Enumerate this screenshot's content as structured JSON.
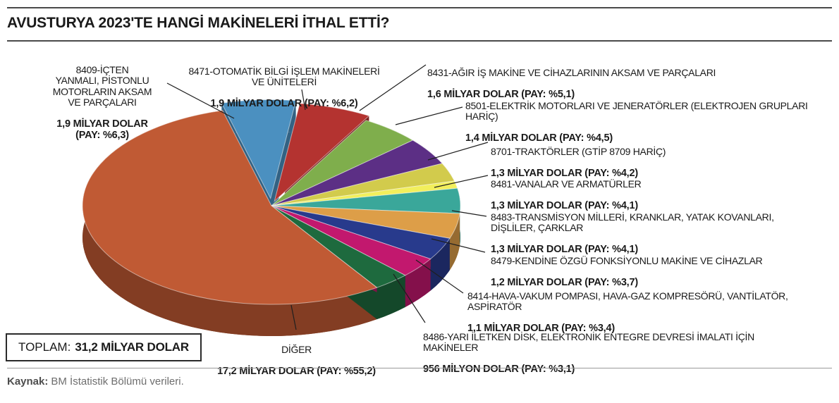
{
  "header": {
    "title": "AVUSTURYA 2023'TE HANGİ MAKİNELERİ İTHAL ETTİ?"
  },
  "total": {
    "label": "TOPLAM:",
    "value": "31,2 MİLYAR DOLAR"
  },
  "footer": {
    "source_label": "Kaynak:",
    "source_text": "BM İstatistik Bölümü verileri."
  },
  "chart_data": {
    "type": "pie",
    "title": "AVUSTURYA 2023'TE HANGİ MAKİNELERİ İTHAL ETTİ?",
    "total_value_billion_usd": 31.2,
    "total_label": "TOPLAM: 31,2 MİLYAR DOLAR",
    "source": "Kaynak: BM İstatistik Bölümü verileri.",
    "legend_position": "callouts-around-pie",
    "start_angle_deg": -15,
    "slices": [
      {
        "id": "8409",
        "label": "8409-İÇTEN YANMALI, PİSTONLU MOTORLARIN AKSAM VE PARÇALARI",
        "value_billion_usd": 1.9,
        "share_pct": 6.3,
        "color": "#4b90c0",
        "explode": 20,
        "callout": {
          "name": "8409-İÇTEN\nYANMALI, PİSTONLU\nMOTORLARIN AKSAM\nVE PARÇALARI",
          "value": "1,9 MİLYAR DOLAR\n(PAY: %6,3)"
        }
      },
      {
        "id": "8471",
        "label": "8471-OTOMATİK BİLGİ İŞLEM MAKİNELERİ VE ÜNİTELERİ",
        "value_billion_usd": 1.9,
        "share_pct": 6.2,
        "color": "#b43330",
        "explode": 13,
        "callout": {
          "name": "8471-OTOMATİK BİLGİ İŞLEM MAKİNELERİ\nVE ÜNİTELERİ",
          "value": "1,9 MİLYAR DOLAR (PAY: %6,2)"
        }
      },
      {
        "id": "8431",
        "label": "8431-AĞIR İŞ MAKİNE VE CİHAZLARININ AKSAM VE PARÇALARI",
        "value_billion_usd": 1.6,
        "share_pct": 5.1,
        "color": "#7fae4c",
        "explode": 0,
        "callout": {
          "name": "8431-AĞIR İŞ MAKİNE VE CİHAZLARININ AKSAM VE PARÇALARI",
          "value": "1,6 MİLYAR DOLAR (PAY: %5,1)"
        }
      },
      {
        "id": "8501",
        "label": "8501-ELEKTRİK MOTORLARI VE JENERATÖRLER (ELEKTROJEN GRUPLARI HARİÇ)",
        "value_billion_usd": 1.4,
        "share_pct": 4.5,
        "color": "#5c2f85",
        "explode": 0,
        "callout": {
          "name": "8501-ELEKTRİK MOTORLARI VE JENERATÖRLER (ELEKTROJEN GRUPLARI\nHARİÇ)",
          "value": "1,4 MİLYAR DOLAR (PAY: %4,5)"
        }
      },
      {
        "id": "8701",
        "label": "8701-TRAKTÖRLER (GTİP 8709 HARİÇ)",
        "value_billion_usd": 1.3,
        "share_pct": 4.2,
        "color": "#d2cb4c",
        "explode": 0,
        "split": {
          "at": 0.72,
          "edge_color": "#f2ef5c"
        },
        "callout": {
          "name": "8701-TRAKTÖRLER (GTİP 8709 HARİÇ)",
          "value": "1,3 MİLYAR DOLAR (PAY: %4,2)"
        }
      },
      {
        "id": "8481",
        "label": "8481-VANALAR VE ARMATÜRLER",
        "value_billion_usd": 1.3,
        "share_pct": 4.1,
        "color": "#3aa79a",
        "explode": 0,
        "callout": {
          "name": "8481-VANALAR VE ARMATÜRLER",
          "value": "1,3 MİLYAR DOLAR (PAY: %4,1)"
        }
      },
      {
        "id": "8483",
        "label": "8483-TRANSMİSYON MİLLERİ, KRANKLAR, YATAK KOVANLARI, DİŞLİLER, ÇARKLAR",
        "value_billion_usd": 1.3,
        "share_pct": 4.1,
        "color": "#dd9e48",
        "explode": 0,
        "callout": {
          "name": "8483-TRANSMİSYON MİLLERİ, KRANKLAR, YATAK KOVANLARI,\nDİŞLİLER, ÇARKLAR",
          "value": "1,3 MİLYAR DOLAR (PAY: %4,1)"
        }
      },
      {
        "id": "8479",
        "label": "8479-KENDİNE ÖZGÜ FONKSİYONLU MAKİNE VE CİHAZLAR",
        "value_billion_usd": 1.2,
        "share_pct": 3.7,
        "color": "#283a8c",
        "explode": 0,
        "callout": {
          "name": "8479-KENDİNE ÖZGÜ FONKSİYONLU MAKİNE VE CİHAZLAR",
          "value": "1,2 MİLYAR DOLAR (PAY: %3,7)"
        }
      },
      {
        "id": "8414",
        "label": "8414-HAVA-VAKUM POMPASI, HAVA-GAZ KOMPRESÖRÜ, VANTİLATÖR, ASPİRATÖR",
        "value_billion_usd": 1.1,
        "share_pct": 3.4,
        "color": "#c2186e",
        "explode": 0,
        "callout": {
          "name": "8414-HAVA-VAKUM POMPASI, HAVA-GAZ KOMPRESÖRÜ, VANTİLATÖR,\nASPİRATÖR",
          "value": "1,1 MİLYAR DOLAR (PAY: %3,4)"
        }
      },
      {
        "id": "8486",
        "label": "8486-YARI İLETKEN DİSK, ELEKTRONİK ENTEGRE DEVRESİ İMALATI İÇİN MAKİNELER",
        "value_billion_usd": 0.956,
        "share_pct": 3.1,
        "color": "#1e6a3e",
        "explode": 0,
        "callout": {
          "name": "8486-YARI İLETKEN DİSK, ELEKTRONİK ENTEGRE DEVRESİ İMALATI İÇİN\nMAKİNELER",
          "value": "956 MİLYON DOLAR (PAY: %3,1)"
        }
      },
      {
        "id": "diger",
        "label": "DİĞER",
        "value_billion_usd": 17.2,
        "share_pct": 55.2,
        "color": "#c05a34",
        "explode": 0,
        "callout": {
          "name": "DİĞER",
          "value": "17,2 MİLYAR DOLAR (PAY: %55,2)"
        }
      }
    ]
  }
}
